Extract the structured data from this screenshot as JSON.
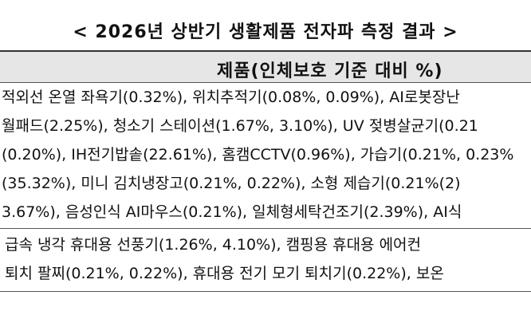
{
  "header": {
    "title": "< 2026년 상반기 생활제품 전자파 측정 결과 >"
  },
  "table": {
    "column_header": "제품(인체보호 기준 대비 %)",
    "groups": [
      [
        "적외선 온열 좌욕기(0.32%), 위치추적기(0.08%, 0.09%), AI로봇장난",
        "월패드(2.25%), 청소기 스테이션(1.67%, 3.10%), UV 젖병살균기(0.21",
        "(0.20%), IH전기밥솥(22.61%), 홈캠CCTV(0.96%), 가습기(0.21%, 0.23%",
        "(35.32%), 미니 김치냉장고(0.21%, 0.22%), 소형 제습기(0.21%(2)",
        "3.67%), 음성인식 AI마우스(0.21%), 일체형세탁건조기(2.39%), AI식"
      ],
      [
        "급속 냉각 휴대용 선풍기(1.26%, 4.10%), 캠핑용 휴대용 에어컨",
        "퇴치 팔찌(0.21%, 0.22%), 휴대용 전기 모기 퇴치기(0.22%), 보온"
      ]
    ]
  }
}
